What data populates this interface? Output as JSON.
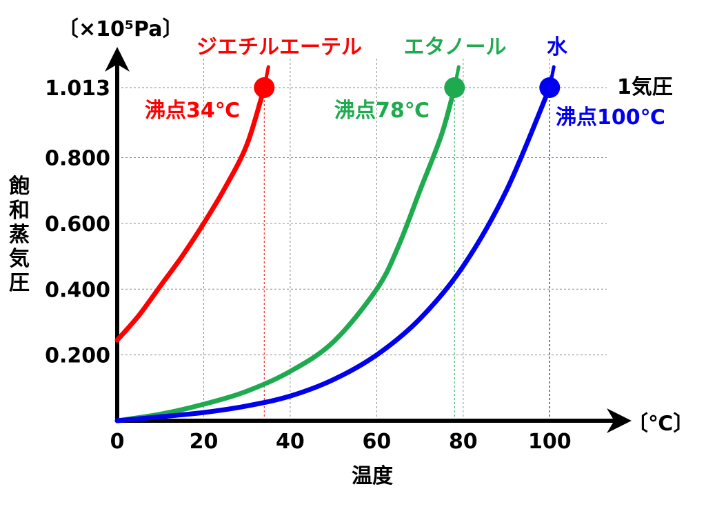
{
  "chart_data": {
    "type": "line",
    "ylabel": "飽和蒸気圧",
    "xlabel": "温度",
    "y_unit": "〔×10⁵Pa〕",
    "x_unit": "〔℃〕",
    "xlim": [
      0,
      110
    ],
    "ylim": [
      0,
      1.013
    ],
    "x_ticks": [
      "0",
      "20",
      "40",
      "60",
      "80",
      "100"
    ],
    "y_ticks": [
      "0.200",
      "0.400",
      "0.600",
      "0.800",
      "1.013"
    ],
    "atm_label": "1気圧",
    "grid": true,
    "series": [
      {
        "name": "ジエチルエーテル",
        "color": "#ff0000",
        "boiling_label": "沸点34℃",
        "boiling_point": [
          34,
          1.013
        ],
        "x": [
          0,
          5,
          10,
          15,
          20,
          25,
          30,
          34
        ],
        "y": [
          0.245,
          0.32,
          0.41,
          0.5,
          0.6,
          0.71,
          0.84,
          1.013
        ]
      },
      {
        "name": "エタノール",
        "color": "#1faa50",
        "boiling_label": "沸点78℃",
        "boiling_point": [
          78,
          1.013
        ],
        "x": [
          0,
          10,
          20,
          30,
          40,
          50,
          60,
          65,
          70,
          75,
          78
        ],
        "y": [
          0.0,
          0.02,
          0.05,
          0.09,
          0.15,
          0.24,
          0.4,
          0.53,
          0.7,
          0.87,
          1.013
        ]
      },
      {
        "name": "水",
        "color": "#0000ee",
        "boiling_label": "沸点100℃",
        "boiling_point": [
          100,
          1.013
        ],
        "x": [
          0,
          10,
          20,
          30,
          40,
          50,
          60,
          70,
          80,
          90,
          100
        ],
        "y": [
          0.0,
          0.012,
          0.025,
          0.045,
          0.075,
          0.125,
          0.2,
          0.31,
          0.47,
          0.7,
          1.013
        ]
      }
    ]
  }
}
